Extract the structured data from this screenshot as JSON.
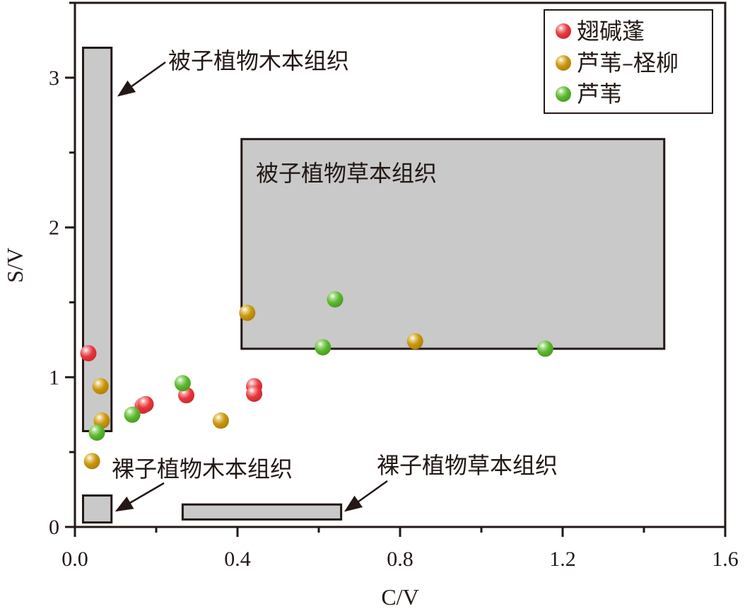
{
  "chart_data": {
    "type": "scatter",
    "xlabel": "C/V",
    "ylabel": "S/V",
    "xlim": [
      0,
      1.6
    ],
    "ylim": [
      0,
      3.5
    ],
    "xticks": [
      "0.0",
      "0.4",
      "0.8",
      "1.2",
      "1.6"
    ],
    "xtick_values": [
      0,
      0.4,
      0.8,
      1.2,
      1.6
    ],
    "yticks": [
      "0",
      "1",
      "2",
      "3"
    ],
    "ytick_values": [
      0,
      1,
      2,
      3
    ],
    "legend_position": "top-right",
    "series": [
      {
        "name": "翅碱蓬",
        "color": "#e8383d",
        "points": [
          [
            0.033,
            1.16
          ],
          [
            0.167,
            0.81
          ],
          [
            0.174,
            0.82
          ],
          [
            0.274,
            0.88
          ],
          [
            0.441,
            0.94
          ],
          [
            0.441,
            0.89
          ]
        ]
      },
      {
        "name": "芦苇–柽柳",
        "color": "#c8960c",
        "points": [
          [
            0.063,
            0.94
          ],
          [
            0.066,
            0.71
          ],
          [
            0.042,
            0.44
          ],
          [
            0.359,
            0.71
          ],
          [
            0.424,
            1.43
          ],
          [
            0.837,
            1.24
          ]
        ]
      },
      {
        "name": "芦苇",
        "color": "#5cb82e",
        "points": [
          [
            0.054,
            0.63
          ],
          [
            0.141,
            0.75
          ],
          [
            0.265,
            0.96
          ],
          [
            0.61,
            1.2
          ],
          [
            0.64,
            1.52
          ],
          [
            1.157,
            1.19
          ]
        ]
      }
    ],
    "regions": [
      {
        "label": "被子植物木本组织",
        "x": [
          0.02,
          0.09
        ],
        "y": [
          0.64,
          3.2
        ]
      },
      {
        "label": "被子植物草本组织",
        "x": [
          0.41,
          1.45
        ],
        "y": [
          1.19,
          2.59
        ]
      },
      {
        "label": "裸子植物木本组织",
        "x": [
          0.02,
          0.09
        ],
        "y": [
          0.03,
          0.21
        ]
      },
      {
        "label": "裸子植物草本组织",
        "x": [
          0.265,
          0.655
        ],
        "y": [
          0.05,
          0.15
        ]
      }
    ]
  }
}
